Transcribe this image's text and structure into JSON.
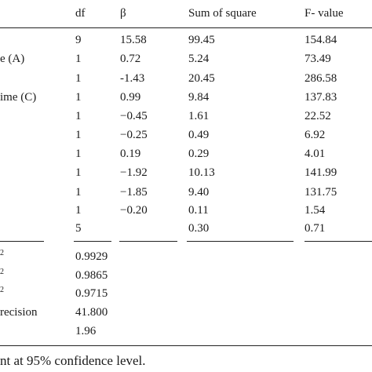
{
  "table": {
    "headers": {
      "df": "df",
      "beta": "β",
      "sum_of_square": "Sum of square",
      "f_value": "F- value"
    },
    "rows": [
      {
        "label": "",
        "df": "9",
        "beta": "15.58",
        "ss": "99.45",
        "f": "154.84"
      },
      {
        "label": "e (A)",
        "df": "1",
        "beta": "0.72",
        "ss": "5.24",
        "f": "73.49"
      },
      {
        "label": "",
        "df": "1",
        "beta": "-1.43",
        "ss": "20.45",
        "f": "286.58"
      },
      {
        "label": "ime (C)",
        "df": "1",
        "beta": "0.99",
        "ss": "9.84",
        "f": "137.83"
      },
      {
        "label": "",
        "df": "1",
        "beta": "−0.45",
        "ss": "1.61",
        "f": "22.52"
      },
      {
        "label": "",
        "df": "1",
        "beta": "−0.25",
        "ss": "0.49",
        "f": "6.92"
      },
      {
        "label": "",
        "df": "1",
        "beta": "0.19",
        "ss": "0.29",
        "f": "4.01"
      },
      {
        "label": "",
        "df": "1",
        "beta": "−1.92",
        "ss": "10.13",
        "f": "141.99"
      },
      {
        "label": "",
        "df": "1",
        "beta": "−1.85",
        "ss": "9.40",
        "f": "131.75"
      },
      {
        "label": "",
        "df": "1",
        "beta": "−0.20",
        "ss": "0.11",
        "f": "1.54"
      },
      {
        "label": "",
        "df": "5",
        "beta": "",
        "ss": "0.30",
        "f": "0.71"
      }
    ],
    "stats": [
      {
        "label": "",
        "label_sup": "2",
        "value": "0.9929"
      },
      {
        "label": "",
        "label_sup": "2",
        "value": "0.9865"
      },
      {
        "label": "",
        "label_sup": "2",
        "value": "0.9715"
      },
      {
        "label": "recision",
        "label_sup": "",
        "value": "41.800"
      },
      {
        "label": "",
        "label_sup": "",
        "value": "1.96"
      }
    ]
  },
  "footnote": "nt at 95% confidence level."
}
